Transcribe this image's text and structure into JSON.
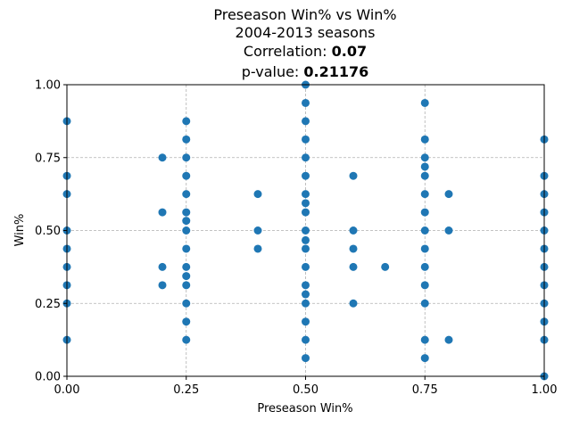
{
  "chart_data": {
    "type": "scatter",
    "title": {
      "line1": "Preseason Win% vs Win%",
      "line2": "2004-2013 seasons",
      "correlation_label": "Correlation: ",
      "correlation_value": "0.07",
      "pvalue_label": "p-value: ",
      "pvalue_value": "0.21176"
    },
    "xlabel": "Preseason Win%",
    "ylabel": "Win%",
    "xlim": [
      0,
      1
    ],
    "ylim": [
      0,
      1
    ],
    "xticks": [
      "0.00",
      "0.25",
      "0.50",
      "0.75",
      "1.00"
    ],
    "yticks": [
      "0.00",
      "0.25",
      "0.50",
      "0.75",
      "1.00"
    ],
    "grid": true,
    "marker_color": "#1f77b4",
    "points": [
      [
        0,
        0.875
      ],
      [
        0,
        0.6875
      ],
      [
        0,
        0.625
      ],
      [
        0,
        0.5
      ],
      [
        0,
        0.4375
      ],
      [
        0,
        0.375
      ],
      [
        0,
        0.3125
      ],
      [
        0,
        0.25
      ],
      [
        0,
        0.125
      ],
      [
        0.2,
        0.75
      ],
      [
        0.2,
        0.5625
      ],
      [
        0.2,
        0.375
      ],
      [
        0.2,
        0.3125
      ],
      [
        0.25,
        0.875
      ],
      [
        0.25,
        0.8125
      ],
      [
        0.25,
        0.75
      ],
      [
        0.25,
        0.6875
      ],
      [
        0.25,
        0.625
      ],
      [
        0.25,
        0.5625
      ],
      [
        0.25,
        0.5333
      ],
      [
        0.25,
        0.5
      ],
      [
        0.25,
        0.4375
      ],
      [
        0.25,
        0.375
      ],
      [
        0.25,
        0.3438
      ],
      [
        0.25,
        0.3125
      ],
      [
        0.25,
        0.25
      ],
      [
        0.25,
        0.1875
      ],
      [
        0.25,
        0.125
      ],
      [
        0.4,
        0.625
      ],
      [
        0.4,
        0.5
      ],
      [
        0.4,
        0.4375
      ],
      [
        0.5,
        1.0
      ],
      [
        0.5,
        0.9375
      ],
      [
        0.5,
        0.875
      ],
      [
        0.5,
        0.8125
      ],
      [
        0.5,
        0.75
      ],
      [
        0.5,
        0.6875
      ],
      [
        0.5,
        0.625
      ],
      [
        0.5,
        0.5938
      ],
      [
        0.5,
        0.5625
      ],
      [
        0.5,
        0.5
      ],
      [
        0.5,
        0.4667
      ],
      [
        0.5,
        0.4375
      ],
      [
        0.5,
        0.375
      ],
      [
        0.5,
        0.3125
      ],
      [
        0.5,
        0.2813
      ],
      [
        0.5,
        0.25
      ],
      [
        0.5,
        0.1875
      ],
      [
        0.5,
        0.125
      ],
      [
        0.5,
        0.0625
      ],
      [
        0.6,
        0.6875
      ],
      [
        0.6,
        0.5
      ],
      [
        0.6,
        0.4375
      ],
      [
        0.6,
        0.375
      ],
      [
        0.6,
        0.25
      ],
      [
        0.6667,
        0.375
      ],
      [
        0.75,
        0.9375
      ],
      [
        0.75,
        0.8125
      ],
      [
        0.75,
        0.75
      ],
      [
        0.75,
        0.7188
      ],
      [
        0.75,
        0.6875
      ],
      [
        0.75,
        0.625
      ],
      [
        0.75,
        0.5625
      ],
      [
        0.75,
        0.5
      ],
      [
        0.75,
        0.4375
      ],
      [
        0.75,
        0.375
      ],
      [
        0.75,
        0.3125
      ],
      [
        0.75,
        0.25
      ],
      [
        0.75,
        0.125
      ],
      [
        0.75,
        0.0625
      ],
      [
        0.8,
        0.625
      ],
      [
        0.8,
        0.5
      ],
      [
        0.8,
        0.125
      ],
      [
        1,
        0.8125
      ],
      [
        1,
        0.6875
      ],
      [
        1,
        0.625
      ],
      [
        1,
        0.5625
      ],
      [
        1,
        0.5
      ],
      [
        1,
        0.4375
      ],
      [
        1,
        0.375
      ],
      [
        1,
        0.3125
      ],
      [
        1,
        0.25
      ],
      [
        1,
        0.1875
      ],
      [
        1,
        0.125
      ],
      [
        1,
        0
      ]
    ]
  }
}
